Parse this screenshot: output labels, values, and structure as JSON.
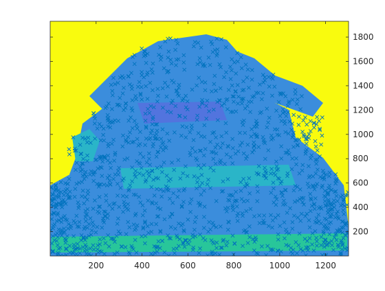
{
  "chart_data": {
    "type": "scatter",
    "title": "",
    "xlabel": "",
    "ylabel": "",
    "xlim": [
      0,
      1300
    ],
    "ylim": [
      0,
      1930
    ],
    "y_axis_location": "right",
    "grid": false,
    "legend": "none",
    "x_ticks": [
      {
        "value": 200,
        "label": "200"
      },
      {
        "value": 400,
        "label": "400"
      },
      {
        "value": 600,
        "label": "600"
      },
      {
        "value": 800,
        "label": "800"
      },
      {
        "value": 1000,
        "label": "1000"
      },
      {
        "value": 1200,
        "label": "1200"
      }
    ],
    "y_ticks": [
      {
        "value": 200,
        "label": "200"
      },
      {
        "value": 400,
        "label": "400"
      },
      {
        "value": 600,
        "label": "600"
      },
      {
        "value": 800,
        "label": "800"
      },
      {
        "value": 1000,
        "label": "1000"
      },
      {
        "value": 1200,
        "label": "1200"
      },
      {
        "value": 1400,
        "label": "1400"
      },
      {
        "value": 1600,
        "label": "1600"
      },
      {
        "value": 1800,
        "label": "1800"
      }
    ],
    "background_image": {
      "colormap": "parula",
      "dominant_color": "#f9fb0e"
    },
    "series": [
      {
        "marker": "x",
        "color": "#0072bd",
        "approx_point_count": 20000,
        "region_x": [
          0,
          1300
        ],
        "region_y": [
          0,
          1820
        ]
      }
    ],
    "colors": {
      "marker": "#0072bd",
      "bg_yellow": "#f9fb0e",
      "mid_blue": "#3b8ddc",
      "cyan": "#2ab5c8",
      "teal": "#28c69a",
      "purple": "#6a5be0",
      "axis": "#262626"
    }
  }
}
